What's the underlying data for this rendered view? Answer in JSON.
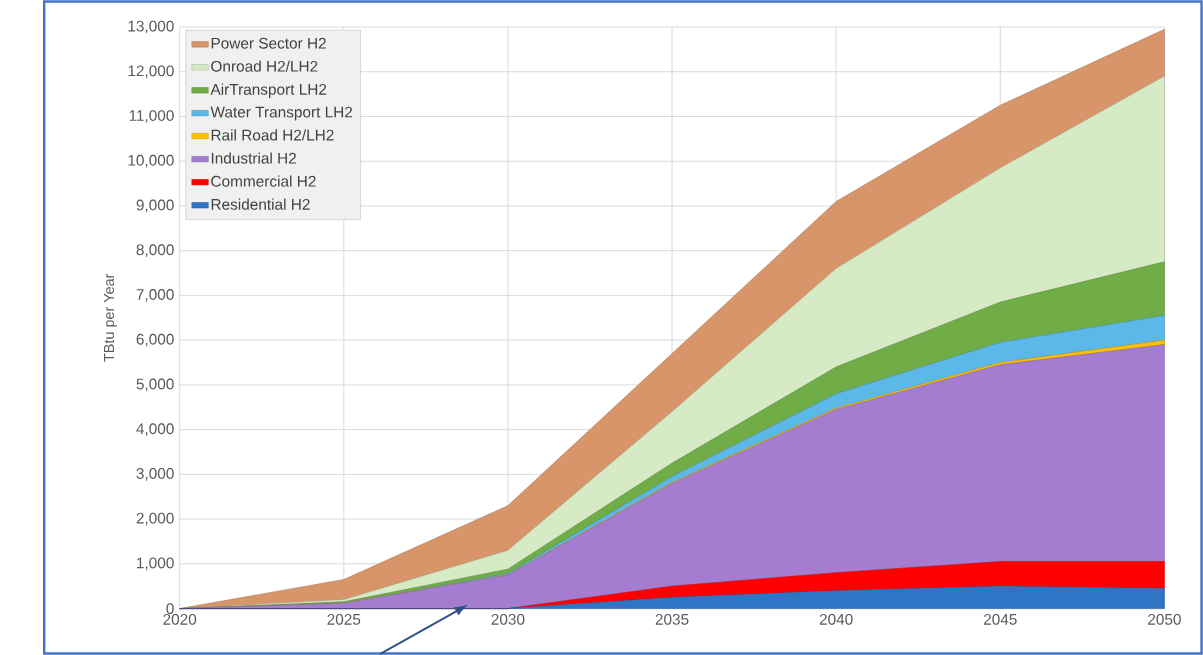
{
  "chart_data": {
    "type": "area",
    "stacked": true,
    "ylabel": "TBtu per Year",
    "x": [
      2020,
      2025,
      2030,
      2035,
      2040,
      2045,
      2050
    ],
    "series": [
      {
        "name": "Residential H2",
        "color": "#2e75c6",
        "values": [
          0,
          0,
          0,
          250,
          400,
          500,
          450
        ]
      },
      {
        "name": "Commercial H2",
        "color": "#ff0000",
        "values": [
          0,
          0,
          0,
          250,
          400,
          550,
          600
        ]
      },
      {
        "name": "Industrial H2",
        "color": "#a47dd0",
        "values": [
          0,
          120,
          750,
          2300,
          3650,
          4400,
          4850
        ]
      },
      {
        "name": "Rail Road H2/LH2",
        "color": "#ffc000",
        "values": [
          0,
          0,
          0,
          20,
          30,
          50,
          100
        ]
      },
      {
        "name": "Water Transport LH2",
        "color": "#5bb8e8",
        "values": [
          0,
          0,
          30,
          130,
          320,
          450,
          550
        ]
      },
      {
        "name": "AirTransport LH2",
        "color": "#70ad47",
        "values": [
          0,
          30,
          100,
          300,
          600,
          900,
          1200
        ]
      },
      {
        "name": "Onroad H2/LH2",
        "color": "#d6eac6",
        "values": [
          0,
          50,
          420,
          1150,
          2200,
          3000,
          4150
        ]
      },
      {
        "name": "Power Sector H2",
        "color": "#d9956a",
        "values": [
          0,
          450,
          1000,
          1300,
          1500,
          1400,
          1050
        ]
      }
    ],
    "xlim": [
      2020,
      2050
    ],
    "ylim": [
      0,
      13000
    ],
    "xticks": [
      2020,
      2025,
      2030,
      2035,
      2040,
      2045,
      2050
    ],
    "yticks": [
      0,
      {
        "value": 1000,
        "label": "1,000"
      },
      {
        "value": 2000,
        "label": "2,000"
      },
      {
        "value": 3000,
        "label": "3,000"
      },
      {
        "value": 4000,
        "label": "4,000"
      },
      {
        "value": 5000,
        "label": "5,000"
      },
      {
        "value": 6000,
        "label": "6,000"
      },
      {
        "value": 7000,
        "label": "7,000"
      },
      {
        "value": 8000,
        "label": "8,000"
      },
      {
        "value": 9000,
        "label": "9,000"
      },
      {
        "value": 10000,
        "label": "10,000"
      },
      {
        "value": 11000,
        "label": "11,000"
      },
      {
        "value": 12000,
        "label": "12,000"
      },
      {
        "value": 13000,
        "label": "13,000"
      }
    ],
    "grid": true,
    "legend": "top left"
  }
}
